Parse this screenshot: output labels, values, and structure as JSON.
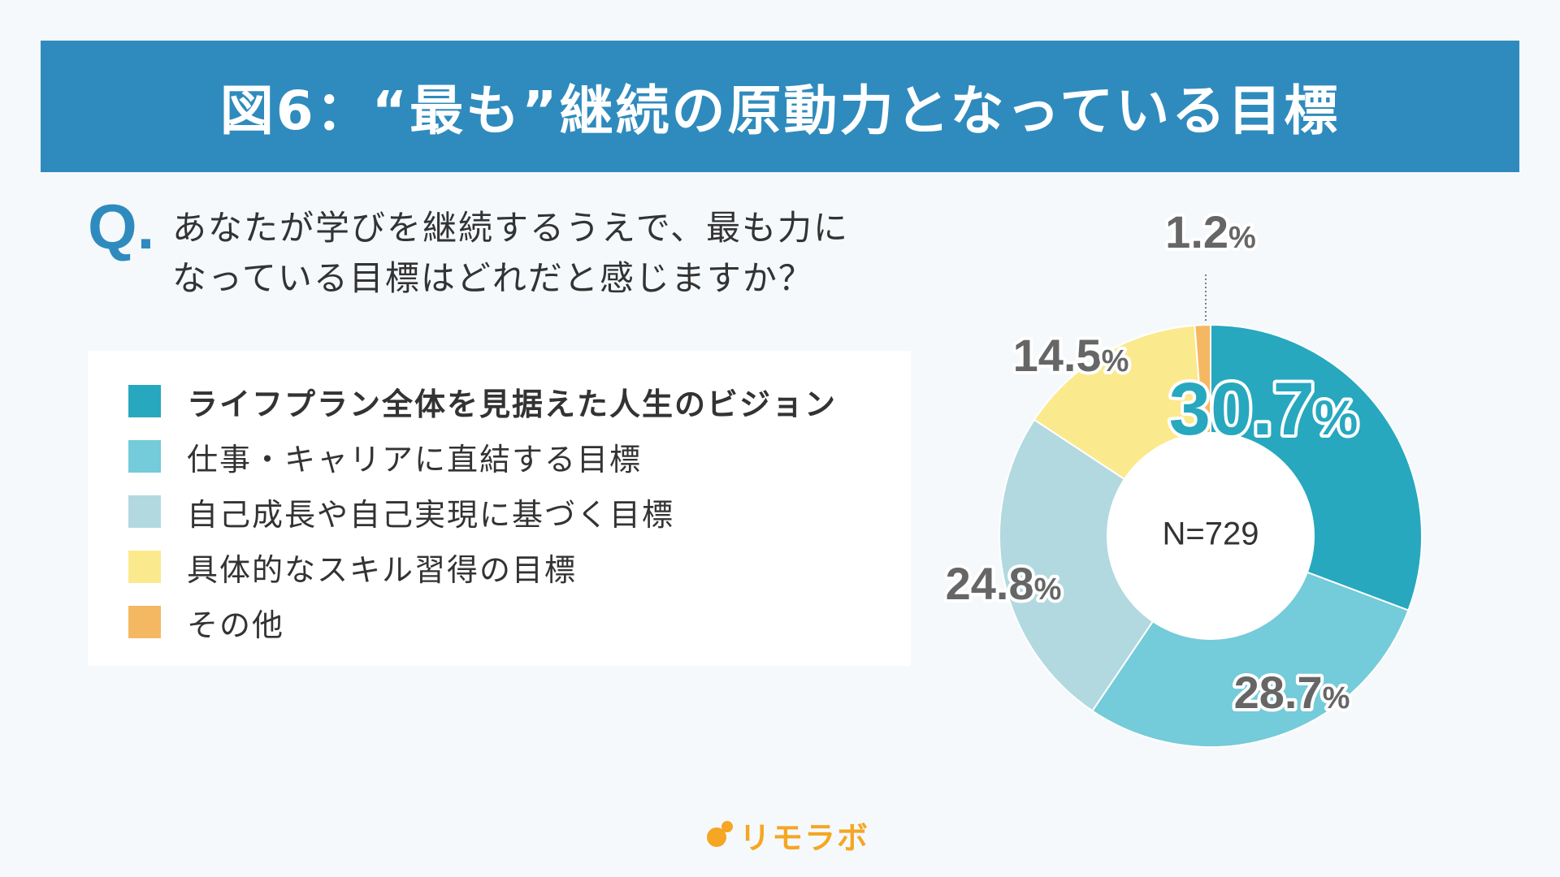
{
  "header": {
    "title": "図6：“最も”継続の原動力となっている目標"
  },
  "question": {
    "mark": "Q.",
    "line1": "あなたが学びを継続するうえで、最も力に",
    "line2": "なっている目標はどれだと感じますか？"
  },
  "chart_data": {
    "type": "pie",
    "variant": "donut",
    "center_label": "N=729",
    "categories": [
      "ライフプラン全体を見据えた人生のビジョン",
      "仕事・キャリアに直結する目標",
      "自己成長や自己実現に基づく目標",
      "具体的なスキル習得の目標",
      "その他"
    ],
    "values": [
      30.7,
      28.7,
      24.8,
      14.5,
      1.2
    ],
    "unit": "%",
    "colors": [
      "#27a8bf",
      "#74cbd9",
      "#b2d9df",
      "#fbe98d",
      "#f5b862"
    ],
    "legend": "left",
    "highlight_index": 0
  },
  "legend": {
    "items": [
      {
        "label": "ライフプラン全体を見据えた人生のビジョン",
        "color": "#27a8bf"
      },
      {
        "label": "仕事・キャリアに直結する目標",
        "color": "#74cbd9"
      },
      {
        "label": "自己成長や自己実現に基づく目標",
        "color": "#b2d9df"
      },
      {
        "label": "具体的なスキル習得の目標",
        "color": "#fbe98d"
      },
      {
        "label": "その他",
        "color": "#f5b862"
      }
    ]
  },
  "labels": {
    "v0": "30.7",
    "v1": "28.7",
    "v2": "24.8",
    "v3": "14.5",
    "v4": "1.2",
    "pct": "%"
  },
  "logo": {
    "text": "リモラボ",
    "color": "#f5a623"
  }
}
